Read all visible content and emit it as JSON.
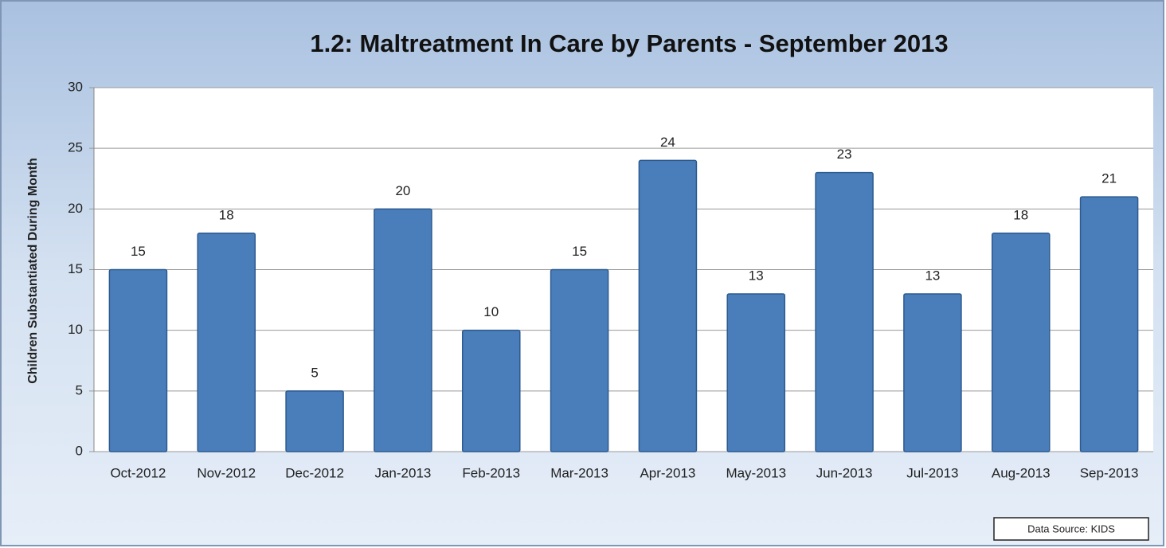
{
  "chart_data": {
    "type": "bar",
    "title": "1.2: Maltreatment In Care by Parents - September 2013",
    "y_label": "Children Substantiated During Month",
    "categories": [
      "Oct-2012",
      "Nov-2012",
      "Dec-2012",
      "Jan-2013",
      "Feb-2013",
      "Mar-2013",
      "Apr-2013",
      "May-2013",
      "Jun-2013",
      "Jul-2013",
      "Aug-2013",
      "Sep-2013"
    ],
    "values": [
      15,
      18,
      5,
      20,
      10,
      15,
      24,
      13,
      23,
      13,
      18,
      21
    ],
    "color": "#4a7ebb",
    "ylim": [
      0,
      30
    ],
    "yticks": [
      0,
      5,
      10,
      15,
      20,
      25,
      30
    ],
    "grid": true,
    "annotation": "Data Source: KIDS"
  }
}
